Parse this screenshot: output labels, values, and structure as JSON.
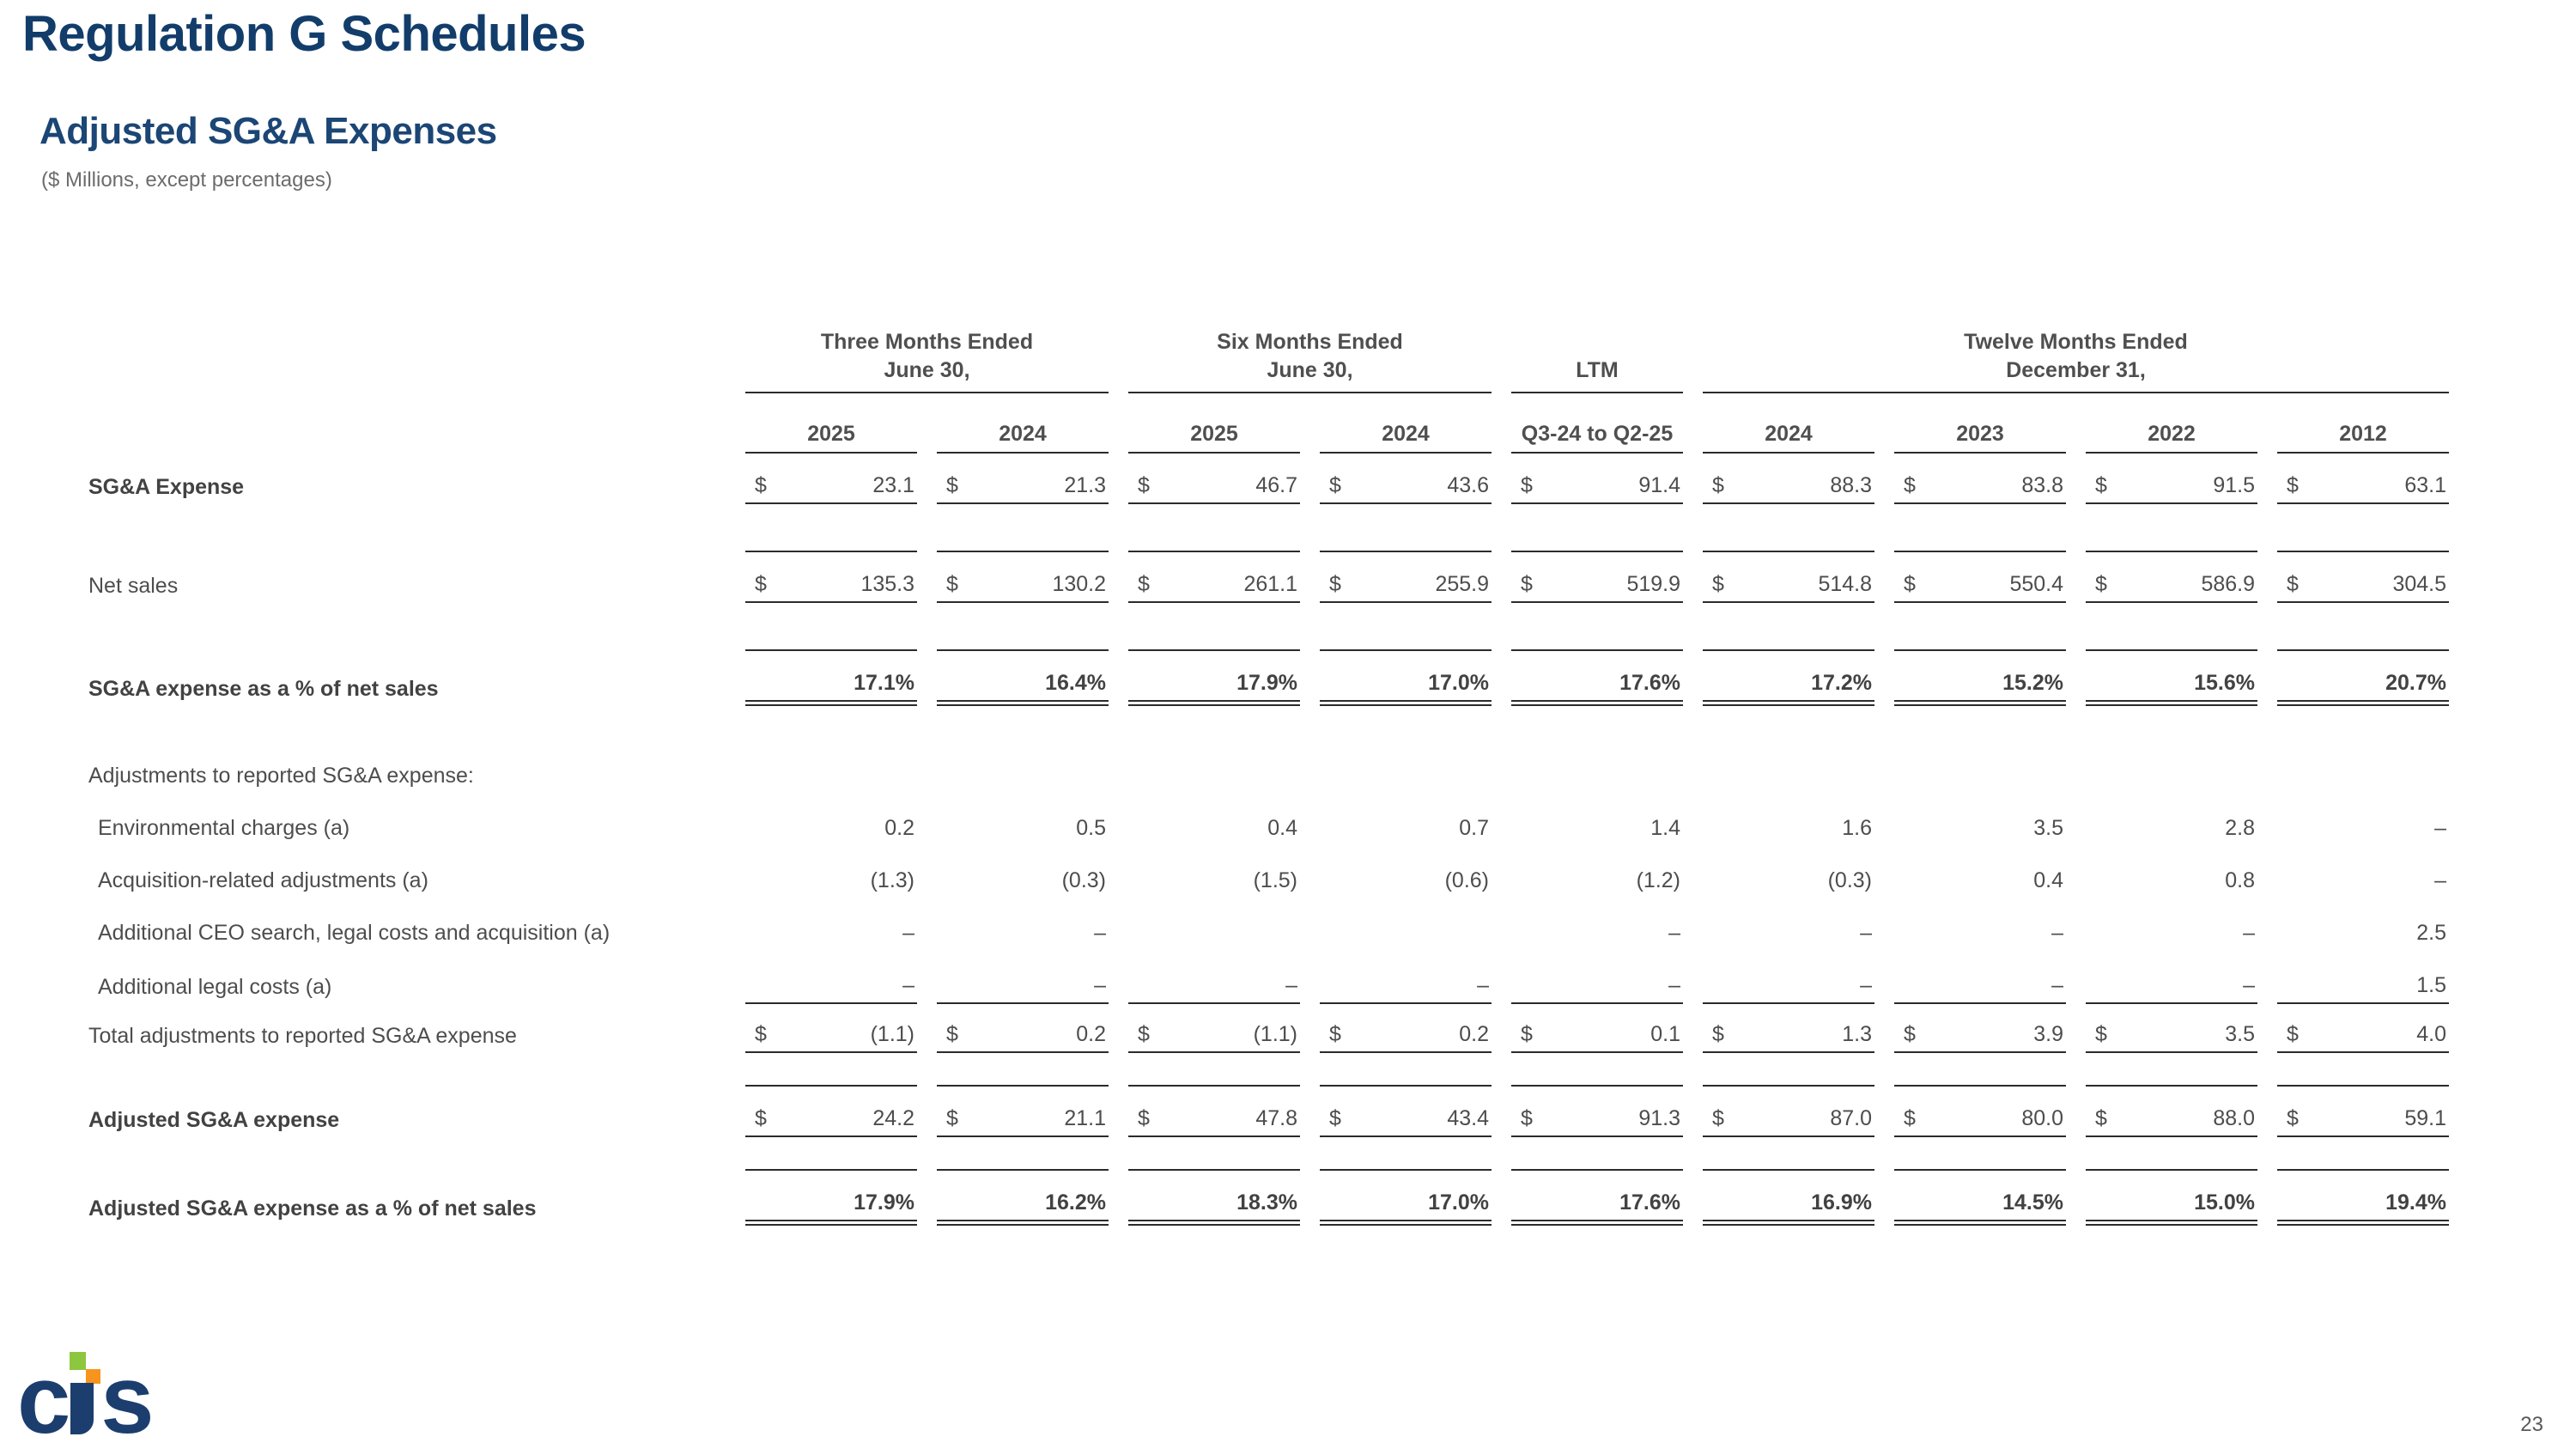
{
  "slide": {
    "title": "Regulation G Schedules",
    "subtitle": "Adjusted SG&A Expenses",
    "units_note": "($ Millions, except percentages)",
    "page_number": "23"
  },
  "logo": {
    "brand": "cts",
    "c": "c",
    "s": "s"
  },
  "colors": {
    "title_navy": "#123d6b",
    "table_text": "#4d4d4d",
    "rule_color": "#2b2b2b",
    "logo_navy": "#1c3e6e",
    "logo_green": "#8dc63f",
    "logo_orange": "#f7941e"
  },
  "table": {
    "col_groups": [
      {
        "line1": "Three Months Ended",
        "line2": "June 30,",
        "span": 2
      },
      {
        "line1": "Six Months Ended",
        "line2": "June 30,",
        "span": 2
      },
      {
        "line1": "LTM",
        "line2": "",
        "span": 1
      },
      {
        "line1": "Twelve Months Ended",
        "line2": "December 31,",
        "span": 4
      }
    ],
    "col_headers": [
      "2025",
      "2024",
      "2025",
      "2024",
      "Q3-24 to Q2-25",
      "2024",
      "2023",
      "2022",
      "2012"
    ],
    "rows": [
      {
        "label": "SG&A Expense",
        "label_bold": true,
        "values_bold": false,
        "dollar": true,
        "rule": "rb",
        "gap": "gap-2",
        "values": [
          "23.1",
          "21.3",
          "46.7",
          "43.6",
          "91.4",
          "88.3",
          "83.8",
          "91.5",
          "63.1"
        ]
      },
      {
        "label": "Net sales",
        "label_bold": false,
        "values_bold": false,
        "dollar": true,
        "rule": "rtb",
        "gap": "gap-5",
        "values": [
          "135.3",
          "130.2",
          "261.1",
          "255.9",
          "519.9",
          "514.8",
          "550.4",
          "586.9",
          "304.5"
        ]
      },
      {
        "label": "SG&A expense as a % of net sales",
        "label_bold": true,
        "values_bold": true,
        "dollar": false,
        "rule": "rtd",
        "gap": "gap-5",
        "values": [
          "17.1%",
          "16.4%",
          "17.9%",
          "17.0%",
          "17.6%",
          "17.2%",
          "15.2%",
          "15.6%",
          "20.7%"
        ]
      },
      {
        "label": "Adjustments to reported SG&A expense:",
        "section": true,
        "label_bold": false,
        "values_bold": false,
        "dollar": false,
        "rule": "",
        "gap": "gap-6",
        "values": [
          "",
          "",
          "",
          "",
          "",
          "",
          "",
          "",
          ""
        ]
      },
      {
        "label": "Environmental charges (a)",
        "indent": true,
        "label_bold": false,
        "values_bold": false,
        "dollar": false,
        "rule": "",
        "gap": "gap-3",
        "values": [
          "0.2",
          "0.5",
          "0.4",
          "0.7",
          "1.4",
          "1.6",
          "3.5",
          "2.8",
          "–"
        ]
      },
      {
        "label": "Acquisition-related adjustments (a)",
        "indent": true,
        "label_bold": false,
        "values_bold": false,
        "dollar": false,
        "rule": "",
        "gap": "gap-3",
        "values": [
          "(1.3)",
          "(0.3)",
          "(1.5)",
          "(0.6)",
          "(1.2)",
          "(0.3)",
          "0.4",
          "0.8",
          "–"
        ]
      },
      {
        "label": "Additional CEO search, legal costs and acquisition (a)",
        "indent": true,
        "label_bold": false,
        "values_bold": false,
        "dollar": false,
        "rule": "",
        "gap": "gap-3",
        "values": [
          "–",
          "–",
          "",
          "",
          "–",
          "–",
          "–",
          "–",
          "2.5"
        ]
      },
      {
        "label": "Additional legal costs (a)",
        "indent": true,
        "label_bold": false,
        "values_bold": false,
        "dollar": false,
        "rule": "rb",
        "gap": "gap-3",
        "values": [
          "–",
          "–",
          "–",
          "–",
          "–",
          "–",
          "–",
          "–",
          "1.5"
        ]
      },
      {
        "label": "Total adjustments to reported SG&A expense",
        "label_bold": false,
        "values_bold": false,
        "dollar": true,
        "rule": "rb",
        "gap": "gap-1",
        "values": [
          "(1.1)",
          "0.2",
          "(1.1)",
          "0.2",
          "0.1",
          "1.3",
          "3.9",
          "3.5",
          "4.0"
        ]
      },
      {
        "label": "Adjusted SG&A expense",
        "label_bold": true,
        "values_bold": false,
        "dollar": true,
        "rule": "rtb",
        "gap": "gap-4",
        "values": [
          "24.2",
          "21.1",
          "47.8",
          "43.4",
          "91.3",
          "87.0",
          "80.0",
          "88.0",
          "59.1"
        ]
      },
      {
        "label": "Adjusted SG&A expense as a % of net sales",
        "label_bold": true,
        "values_bold": true,
        "dollar": false,
        "rule": "rtd",
        "gap": "gap-4",
        "values": [
          "17.9%",
          "16.2%",
          "18.3%",
          "17.0%",
          "17.6%",
          "16.9%",
          "14.5%",
          "15.0%",
          "19.4%"
        ]
      }
    ]
  }
}
